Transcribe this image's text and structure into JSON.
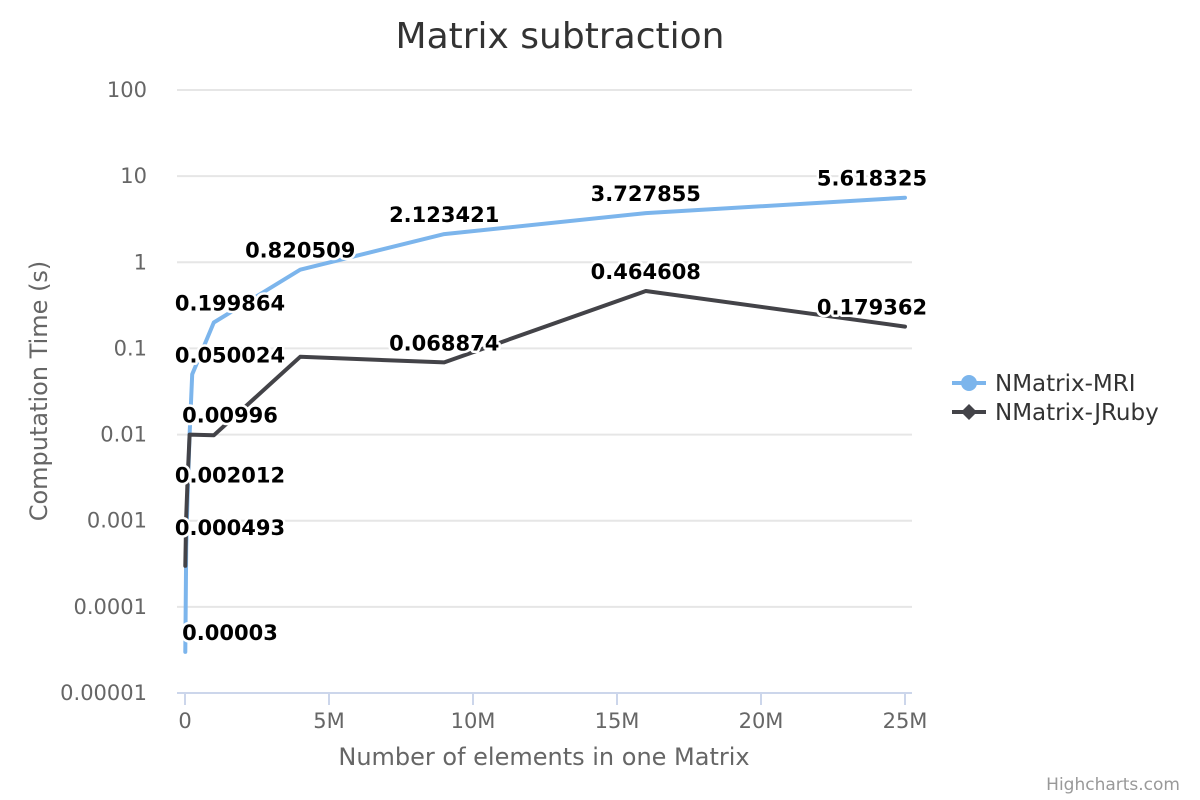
{
  "chart_data": {
    "type": "line",
    "title": "Matrix subtraction",
    "xlabel": "Number of elements in one Matrix",
    "ylabel": "Computation Time (s)",
    "x_scale": "linear",
    "y_scale": "log",
    "xlim": [
      0,
      25000000
    ],
    "ylim": [
      1e-05,
      100
    ],
    "x_ticks": [
      0,
      5000000,
      10000000,
      15000000,
      20000000,
      25000000
    ],
    "x_tick_labels": [
      "0",
      "5M",
      "10M",
      "15M",
      "20M",
      "25M"
    ],
    "y_ticks": [
      1e-05,
      0.0001,
      0.001,
      0.01,
      0.1,
      1,
      10,
      100
    ],
    "y_tick_labels": [
      "0.00001",
      "0.0001",
      "0.001",
      "0.01",
      "0.1",
      "1",
      "10",
      "100"
    ],
    "grid": true,
    "legend_position": "right",
    "series": [
      {
        "name": "NMatrix-MRI",
        "color": "#7cb5ec",
        "marker": "circle",
        "points": [
          {
            "x": 10000,
            "y": 3e-05,
            "label": "0.00003"
          },
          {
            "x": 40000,
            "y": 0.000493,
            "label": "0.000493"
          },
          {
            "x": 90000,
            "y": 0.002012,
            "label": "0.002012"
          },
          {
            "x": 160000,
            "y": 0.00996,
            "label": "0.00996"
          },
          {
            "x": 250000,
            "y": 0.050024,
            "label": "0.050024"
          },
          {
            "x": 1000000,
            "y": 0.199864,
            "label": "0.199864"
          },
          {
            "x": 4000000,
            "y": 0.820509,
            "label": "0.820509"
          },
          {
            "x": 9000000,
            "y": 2.123421,
            "label": "2.123421"
          },
          {
            "x": 16000000,
            "y": 3.727855,
            "label": "3.727855"
          },
          {
            "x": 25000000,
            "y": 5.618325,
            "label": "5.618325"
          }
        ]
      },
      {
        "name": "NMatrix-JRuby",
        "color": "#434348",
        "marker": "diamond",
        "points": [
          {
            "x": 10000,
            "y": 0.0003
          },
          {
            "x": 40000,
            "y": 0.0011
          },
          {
            "x": 90000,
            "y": 0.003
          },
          {
            "x": 160000,
            "y": 0.01
          },
          {
            "x": 1000000,
            "y": 0.0098
          },
          {
            "x": 4000000,
            "y": 0.08
          },
          {
            "x": 9000000,
            "y": 0.068874,
            "label": "0.068874"
          },
          {
            "x": 16000000,
            "y": 0.464608,
            "label": "0.464608"
          },
          {
            "x": 25000000,
            "y": 0.179362,
            "label": "0.179362"
          }
        ]
      }
    ]
  },
  "credits": "Highcharts.com"
}
